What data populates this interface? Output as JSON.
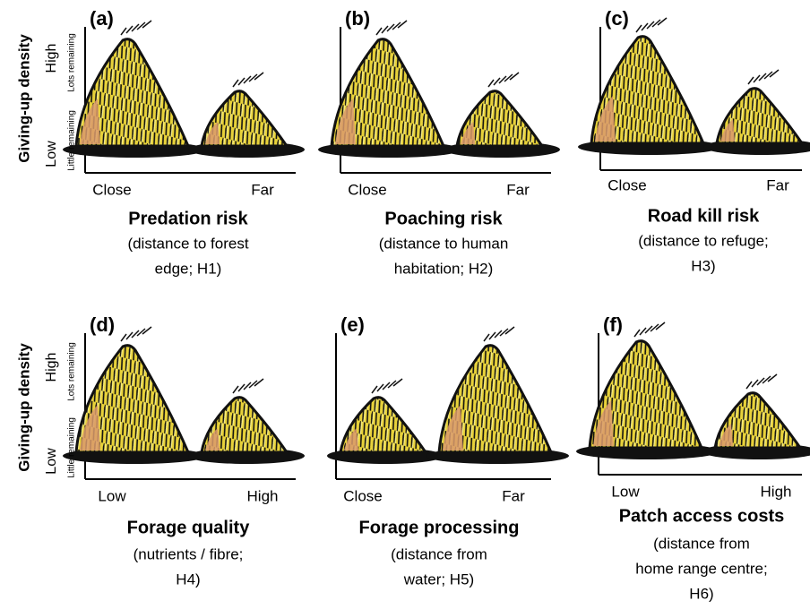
{
  "y_axis": {
    "title": "Giving-up density",
    "high": "High",
    "low": "Low",
    "high_note": "Lots remaining",
    "low_note": "Little remaining"
  },
  "panels": [
    {
      "label": "(a)",
      "x_labels": [
        "Close",
        "Far"
      ],
      "title": "Predation risk",
      "subtitle_lines": [
        "(distance to forest",
        "edge; H1)"
      ]
    },
    {
      "label": "(b)",
      "x_labels": [
        "Close",
        "Far"
      ],
      "title": "Poaching risk",
      "subtitle_lines": [
        "(distance to human",
        "habitation; H2)"
      ]
    },
    {
      "label": "(c)",
      "x_labels": [
        "Close",
        "Far"
      ],
      "title": "Road kill risk",
      "subtitle_lines": [
        "(distance to refuge;",
        "H3)"
      ]
    },
    {
      "label": "(d)",
      "x_labels": [
        "Low",
        "High"
      ],
      "title": "Forage quality",
      "subtitle_lines": [
        "(nutrients / fibre;",
        "H4)"
      ]
    },
    {
      "label": "(e)",
      "x_labels": [
        "Close",
        "Far"
      ],
      "title": "Forage processing",
      "subtitle_lines": [
        "(distance from",
        "water; H5)"
      ]
    },
    {
      "label": "(f)",
      "x_labels": [
        "Low",
        "High"
      ],
      "title": "Patch access costs",
      "subtitle_lines": [
        "(distance from",
        "home range centre;",
        "H6)"
      ]
    }
  ]
}
